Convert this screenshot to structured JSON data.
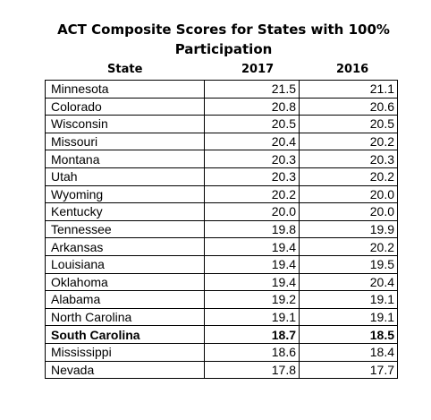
{
  "title": "ACT Composite Scores for States with 100% Participation",
  "headers": {
    "state": "State",
    "year1": "2017",
    "year2": "2016"
  },
  "rows": [
    {
      "state": "Minnesota",
      "y2017": "21.5",
      "y2016": "21.1",
      "bold": false
    },
    {
      "state": "Colorado",
      "y2017": "20.8",
      "y2016": "20.6",
      "bold": false
    },
    {
      "state": "Wisconsin",
      "y2017": "20.5",
      "y2016": "20.5",
      "bold": false
    },
    {
      "state": "Missouri",
      "y2017": "20.4",
      "y2016": "20.2",
      "bold": false
    },
    {
      "state": "Montana",
      "y2017": "20.3",
      "y2016": "20.3",
      "bold": false
    },
    {
      "state": "Utah",
      "y2017": "20.3",
      "y2016": "20.2",
      "bold": false
    },
    {
      "state": "Wyoming",
      "y2017": "20.2",
      "y2016": "20.0",
      "bold": false
    },
    {
      "state": "Kentucky",
      "y2017": "20.0",
      "y2016": "20.0",
      "bold": false
    },
    {
      "state": "Tennessee",
      "y2017": "19.8",
      "y2016": "19.9",
      "bold": false
    },
    {
      "state": "Arkansas",
      "y2017": "19.4",
      "y2016": "20.2",
      "bold": false
    },
    {
      "state": "Louisiana",
      "y2017": "19.4",
      "y2016": "19.5",
      "bold": false
    },
    {
      "state": "Oklahoma",
      "y2017": "19.4",
      "y2016": "20.4",
      "bold": false
    },
    {
      "state": "Alabama",
      "y2017": "19.2",
      "y2016": "19.1",
      "bold": false
    },
    {
      "state": "North Carolina",
      "y2017": "19.1",
      "y2016": "19.1",
      "bold": false
    },
    {
      "state": "South Carolina",
      "y2017": "18.7",
      "y2016": "18.5",
      "bold": true
    },
    {
      "state": "Mississippi",
      "y2017": "18.6",
      "y2016": "18.4",
      "bold": false
    },
    {
      "state": "Nevada",
      "y2017": "17.8",
      "y2016": "17.7",
      "bold": false
    }
  ]
}
